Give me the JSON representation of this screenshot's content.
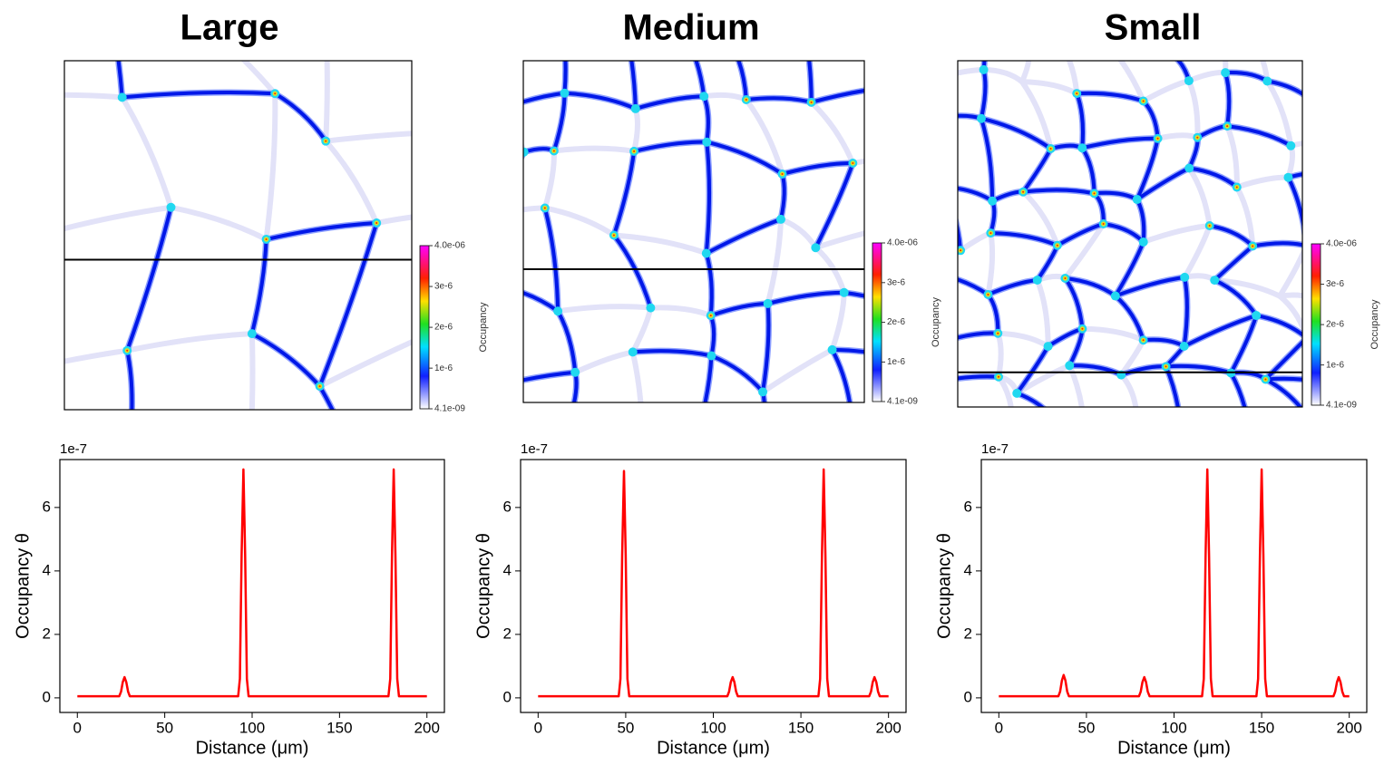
{
  "chart_data": [
    {
      "type": "line",
      "title": "Large",
      "x": [
        0,
        24,
        25,
        26,
        27,
        28,
        29,
        30,
        92,
        93,
        94,
        95,
        96,
        97,
        98,
        178,
        179,
        180,
        181,
        182,
        183,
        184,
        200
      ],
      "values": [
        0.05,
        0.05,
        0.2,
        0.5,
        0.65,
        0.5,
        0.2,
        0.05,
        0.05,
        0.6,
        4.5,
        7.2,
        4.5,
        0.6,
        0.05,
        0.05,
        0.6,
        4.5,
        7.2,
        4.5,
        0.6,
        0.05,
        0.05
      ],
      "color": "#ff0000",
      "xlim": [
        -10,
        210
      ],
      "ylim": [
        -0.46,
        7.51
      ],
      "xticks": [
        0,
        50,
        100,
        150,
        200
      ],
      "yticks": [
        0,
        2,
        4,
        6
      ],
      "y_offset_label": "1e-7",
      "xlabel": "Distance (μm)",
      "ylabel": "Occupancy θ",
      "colorbar": {
        "label": "Occupancy",
        "lim": [
          4.1e-09,
          4e-06
        ],
        "ticks": [
          {
            "value": 4.1e-09,
            "label": "4.1e-09"
          },
          {
            "value": 1e-06,
            "label": "1e-6"
          },
          {
            "value": 2e-06,
            "label": "2e-6"
          },
          {
            "value": 3e-06,
            "label": "3e-6"
          },
          {
            "value": 4e-06,
            "label": "4.0e-06"
          }
        ]
      }
    },
    {
      "type": "line",
      "title": "Medium",
      "x": [
        0,
        46,
        47,
        48,
        49,
        50,
        51,
        52,
        108,
        109,
        110,
        111,
        112,
        113,
        114,
        160,
        161,
        162,
        163,
        164,
        165,
        166,
        189,
        190,
        191,
        192,
        193,
        194,
        195,
        200
      ],
      "values": [
        0.05,
        0.05,
        0.6,
        4.5,
        7.15,
        4.5,
        0.6,
        0.05,
        0.05,
        0.2,
        0.5,
        0.65,
        0.5,
        0.2,
        0.05,
        0.05,
        0.6,
        4.5,
        7.2,
        4.5,
        0.6,
        0.05,
        0.05,
        0.2,
        0.5,
        0.65,
        0.5,
        0.2,
        0.05,
        0.05
      ],
      "color": "#ff0000",
      "xlim": [
        -10,
        210
      ],
      "ylim": [
        -0.46,
        7.51
      ],
      "xticks": [
        0,
        50,
        100,
        150,
        200
      ],
      "yticks": [
        0,
        2,
        4,
        6
      ],
      "y_offset_label": "1e-7",
      "xlabel": "Distance (μm)",
      "ylabel": "Occupancy θ",
      "colorbar": {
        "label": "Occupancy",
        "lim": [
          4.1e-09,
          4e-06
        ],
        "ticks": [
          {
            "value": 4.1e-09,
            "label": "4.1e-09"
          },
          {
            "value": 1e-06,
            "label": "1e-6"
          },
          {
            "value": 2e-06,
            "label": "2e-6"
          },
          {
            "value": 3e-06,
            "label": "3e-6"
          },
          {
            "value": 4e-06,
            "label": "4.0e-06"
          }
        ]
      }
    },
    {
      "type": "line",
      "title": "Small",
      "x": [
        0,
        34,
        35,
        36,
        37,
        38,
        39,
        40,
        80,
        81,
        82,
        83,
        84,
        85,
        86,
        116,
        117,
        118,
        119,
        120,
        121,
        122,
        147,
        148,
        149,
        150,
        151,
        152,
        153,
        191,
        192,
        193,
        194,
        195,
        196,
        197,
        200
      ],
      "values": [
        0.05,
        0.05,
        0.2,
        0.55,
        0.72,
        0.55,
        0.2,
        0.05,
        0.05,
        0.2,
        0.5,
        0.65,
        0.5,
        0.2,
        0.05,
        0.05,
        0.6,
        4.5,
        7.2,
        4.5,
        0.6,
        0.05,
        0.05,
        0.6,
        4.5,
        7.2,
        4.5,
        0.6,
        0.05,
        0.05,
        0.2,
        0.5,
        0.65,
        0.5,
        0.2,
        0.05,
        0.05
      ],
      "color": "#ff0000",
      "xlim": [
        -10,
        210
      ],
      "ylim": [
        -0.46,
        7.51
      ],
      "xticks": [
        0,
        50,
        100,
        150,
        200
      ],
      "yticks": [
        0,
        2,
        4,
        6
      ],
      "y_offset_label": "1e-7",
      "xlabel": "Distance (μm)",
      "ylabel": "Occupancy θ",
      "colorbar": {
        "label": "Occupancy",
        "lim": [
          4.1e-09,
          4e-06
        ],
        "ticks": [
          {
            "value": 4.1e-09,
            "label": "4.1e-09"
          },
          {
            "value": 1e-06,
            "label": "1e-6"
          },
          {
            "value": 2e-06,
            "label": "2e-6"
          },
          {
            "value": 3e-06,
            "label": "3e-6"
          },
          {
            "value": 4e-06,
            "label": "4.0e-06"
          }
        ]
      }
    }
  ]
}
